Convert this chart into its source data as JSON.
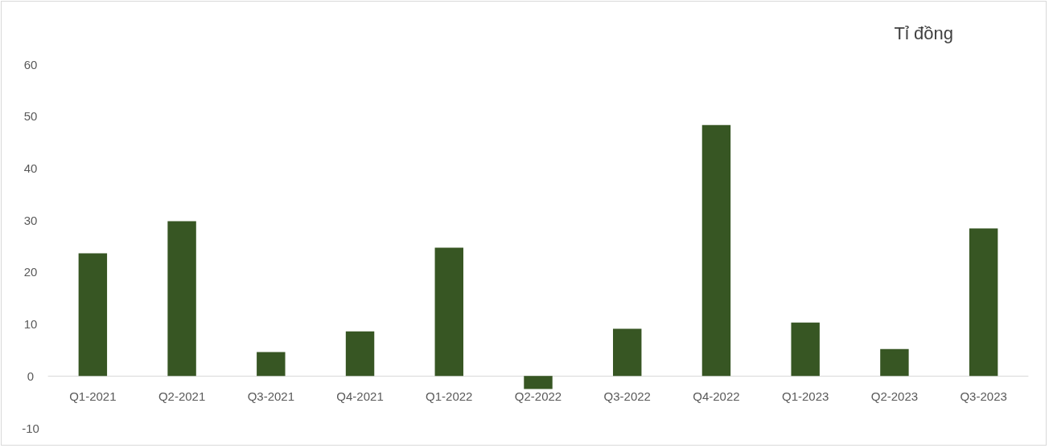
{
  "chart_data": {
    "type": "bar",
    "ylabel": "Tỉ đồng",
    "categories": [
      "Q1-2021",
      "Q2-2021",
      "Q3-2021",
      "Q4-2021",
      "Q1-2022",
      "Q2-2022",
      "Q3-2022",
      "Q4-2022",
      "Q1-2023",
      "Q2-2023",
      "Q3-2023"
    ],
    "values": [
      23.6,
      29.8,
      4.6,
      8.6,
      24.7,
      -2.5,
      9.1,
      48.3,
      10.3,
      5.2,
      28.4
    ],
    "color": "#375623",
    "ylim": [
      -10,
      60
    ],
    "yticks": [
      -10,
      0,
      10,
      20,
      30,
      40,
      50,
      60
    ],
    "grid": false
  }
}
